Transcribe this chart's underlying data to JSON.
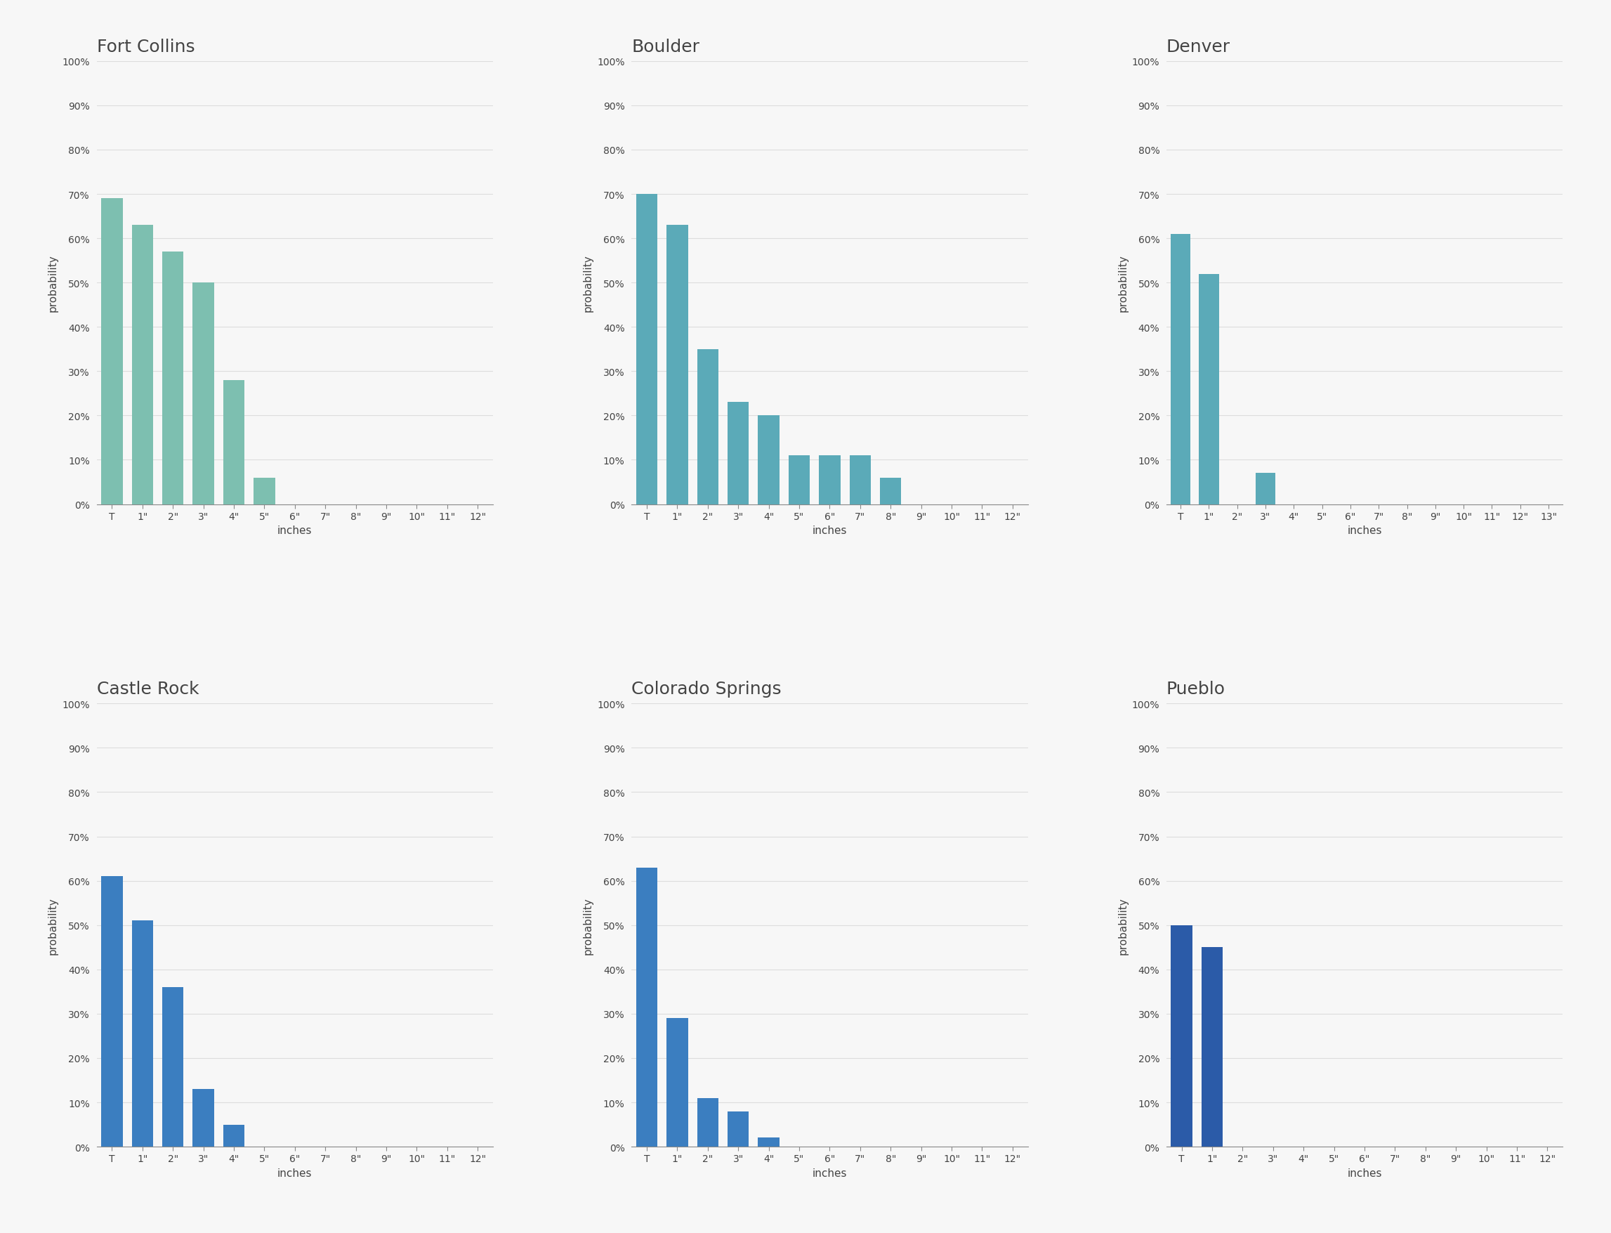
{
  "subplots": [
    {
      "title": "Fort Collins",
      "color": "#7DBFB0",
      "x_labels": [
        "T",
        "1\"",
        "2\"",
        "3\"",
        "4\"",
        "5\"",
        "6\"",
        "7\"",
        "8\"",
        "9\"",
        "10\"",
        "11\"",
        "12\""
      ],
      "values": [
        0.69,
        0.63,
        0.57,
        0.5,
        0.28,
        0.06,
        0.0,
        0.0,
        0.0,
        0.0,
        0.0,
        0.0,
        0.0
      ]
    },
    {
      "title": "Boulder",
      "color": "#5BAAB8",
      "x_labels": [
        "T",
        "1\"",
        "2\"",
        "3\"",
        "4\"",
        "5\"",
        "6\"",
        "7\"",
        "8\"",
        "9\"",
        "10\"",
        "11\"",
        "12\""
      ],
      "values": [
        0.7,
        0.63,
        0.35,
        0.23,
        0.2,
        0.11,
        0.11,
        0.11,
        0.06,
        0.0,
        0.0,
        0.0,
        0.0
      ]
    },
    {
      "title": "Denver",
      "color": "#5BAAB8",
      "x_labels": [
        "T",
        "1\"",
        "2\"",
        "3\"",
        "4\"",
        "5\"",
        "6\"",
        "7\"",
        "8\"",
        "9\"",
        "10\"",
        "11\"",
        "12\"",
        "13\""
      ],
      "values": [
        0.61,
        0.52,
        0.0,
        0.07,
        0.0,
        0.0,
        0.0,
        0.0,
        0.0,
        0.0,
        0.0,
        0.0,
        0.0,
        0.0
      ]
    },
    {
      "title": "Castle Rock",
      "color": "#3B7EC0",
      "x_labels": [
        "T",
        "1\"",
        "2\"",
        "3\"",
        "4\"",
        "5\"",
        "6\"",
        "7\"",
        "8\"",
        "9\"",
        "10\"",
        "11\"",
        "12\""
      ],
      "values": [
        0.61,
        0.51,
        0.36,
        0.13,
        0.05,
        0.0,
        0.0,
        0.0,
        0.0,
        0.0,
        0.0,
        0.0,
        0.0
      ]
    },
    {
      "title": "Colorado Springs",
      "color": "#3B7EC0",
      "x_labels": [
        "T",
        "1\"",
        "2\"",
        "3\"",
        "4\"",
        "5\"",
        "6\"",
        "7\"",
        "8\"",
        "9\"",
        "10\"",
        "11\"",
        "12\""
      ],
      "values": [
        0.63,
        0.29,
        0.11,
        0.08,
        0.02,
        0.0,
        0.0,
        0.0,
        0.0,
        0.0,
        0.0,
        0.0,
        0.0
      ]
    },
    {
      "title": "Pueblo",
      "color": "#2B5BA8",
      "x_labels": [
        "T",
        "1\"",
        "2\"",
        "3\"",
        "4\"",
        "5\"",
        "6\"",
        "7\"",
        "8\"",
        "9\"",
        "10\"",
        "11\"",
        "12\""
      ],
      "values": [
        0.5,
        0.45,
        0.0,
        0.0,
        0.0,
        0.0,
        0.0,
        0.0,
        0.0,
        0.0,
        0.0,
        0.0,
        0.0
      ]
    }
  ],
  "bg_color": "#F7F7F7",
  "plot_bg_color": "#F7F7F7",
  "ylabel": "probability",
  "xlabel": "inches",
  "title_fontsize": 18,
  "label_fontsize": 11,
  "tick_fontsize": 10,
  "grid_color": "#DDDDDD",
  "bar_width": 0.7
}
